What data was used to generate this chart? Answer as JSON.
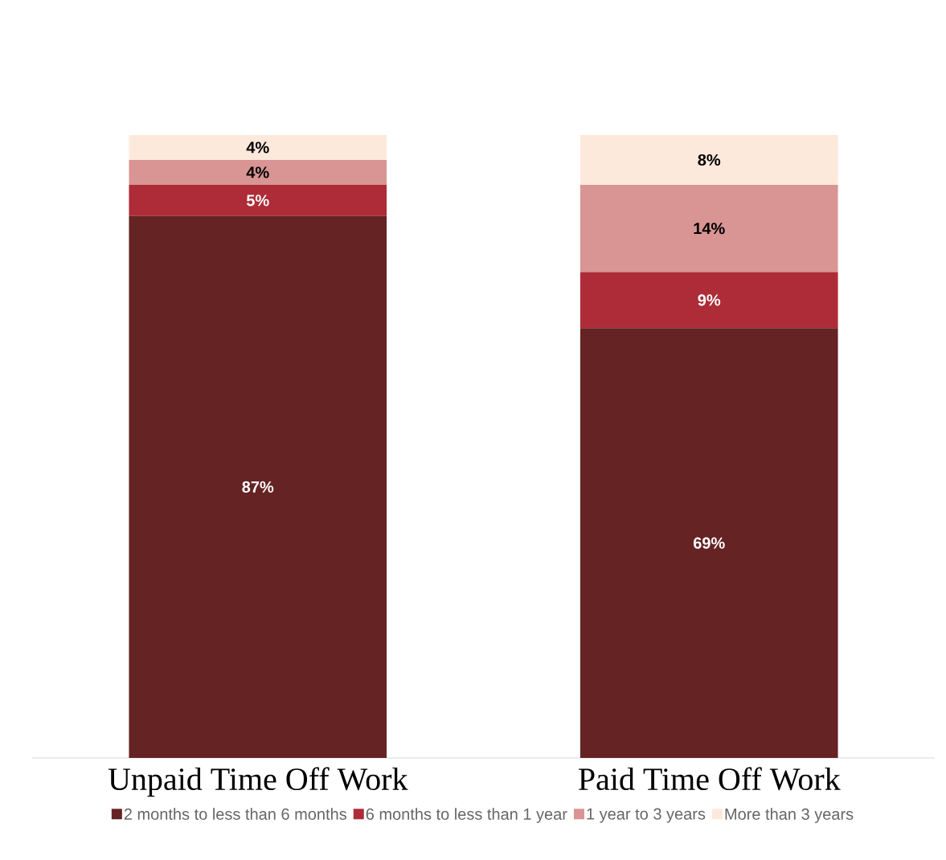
{
  "chart_data": {
    "type": "bar",
    "stacked": true,
    "categories": [
      "Unpaid Time Off Work",
      "Paid Time Off Work"
    ],
    "ylim": [
      0,
      100
    ],
    "tick_labels": "x",
    "legend": "bottom",
    "series": [
      {
        "name": "2 months to less than 6 months",
        "color": "#652323",
        "values": [
          87,
          69
        ],
        "value_labels": [
          "87%",
          "69%"
        ]
      },
      {
        "name": "6 months to less than 1 year",
        "color": "#ad2c38",
        "values": [
          5,
          9
        ],
        "value_labels": [
          "5%",
          "9%"
        ]
      },
      {
        "name": "1 year to 3 years",
        "color": "#d99593",
        "values": [
          4,
          14
        ],
        "value_labels": [
          "4%",
          "14%"
        ]
      },
      {
        "name": "More than 3 years",
        "color": "#fde9dc",
        "values": [
          4,
          8
        ],
        "value_labels": [
          "4%",
          "8%"
        ]
      }
    ]
  }
}
